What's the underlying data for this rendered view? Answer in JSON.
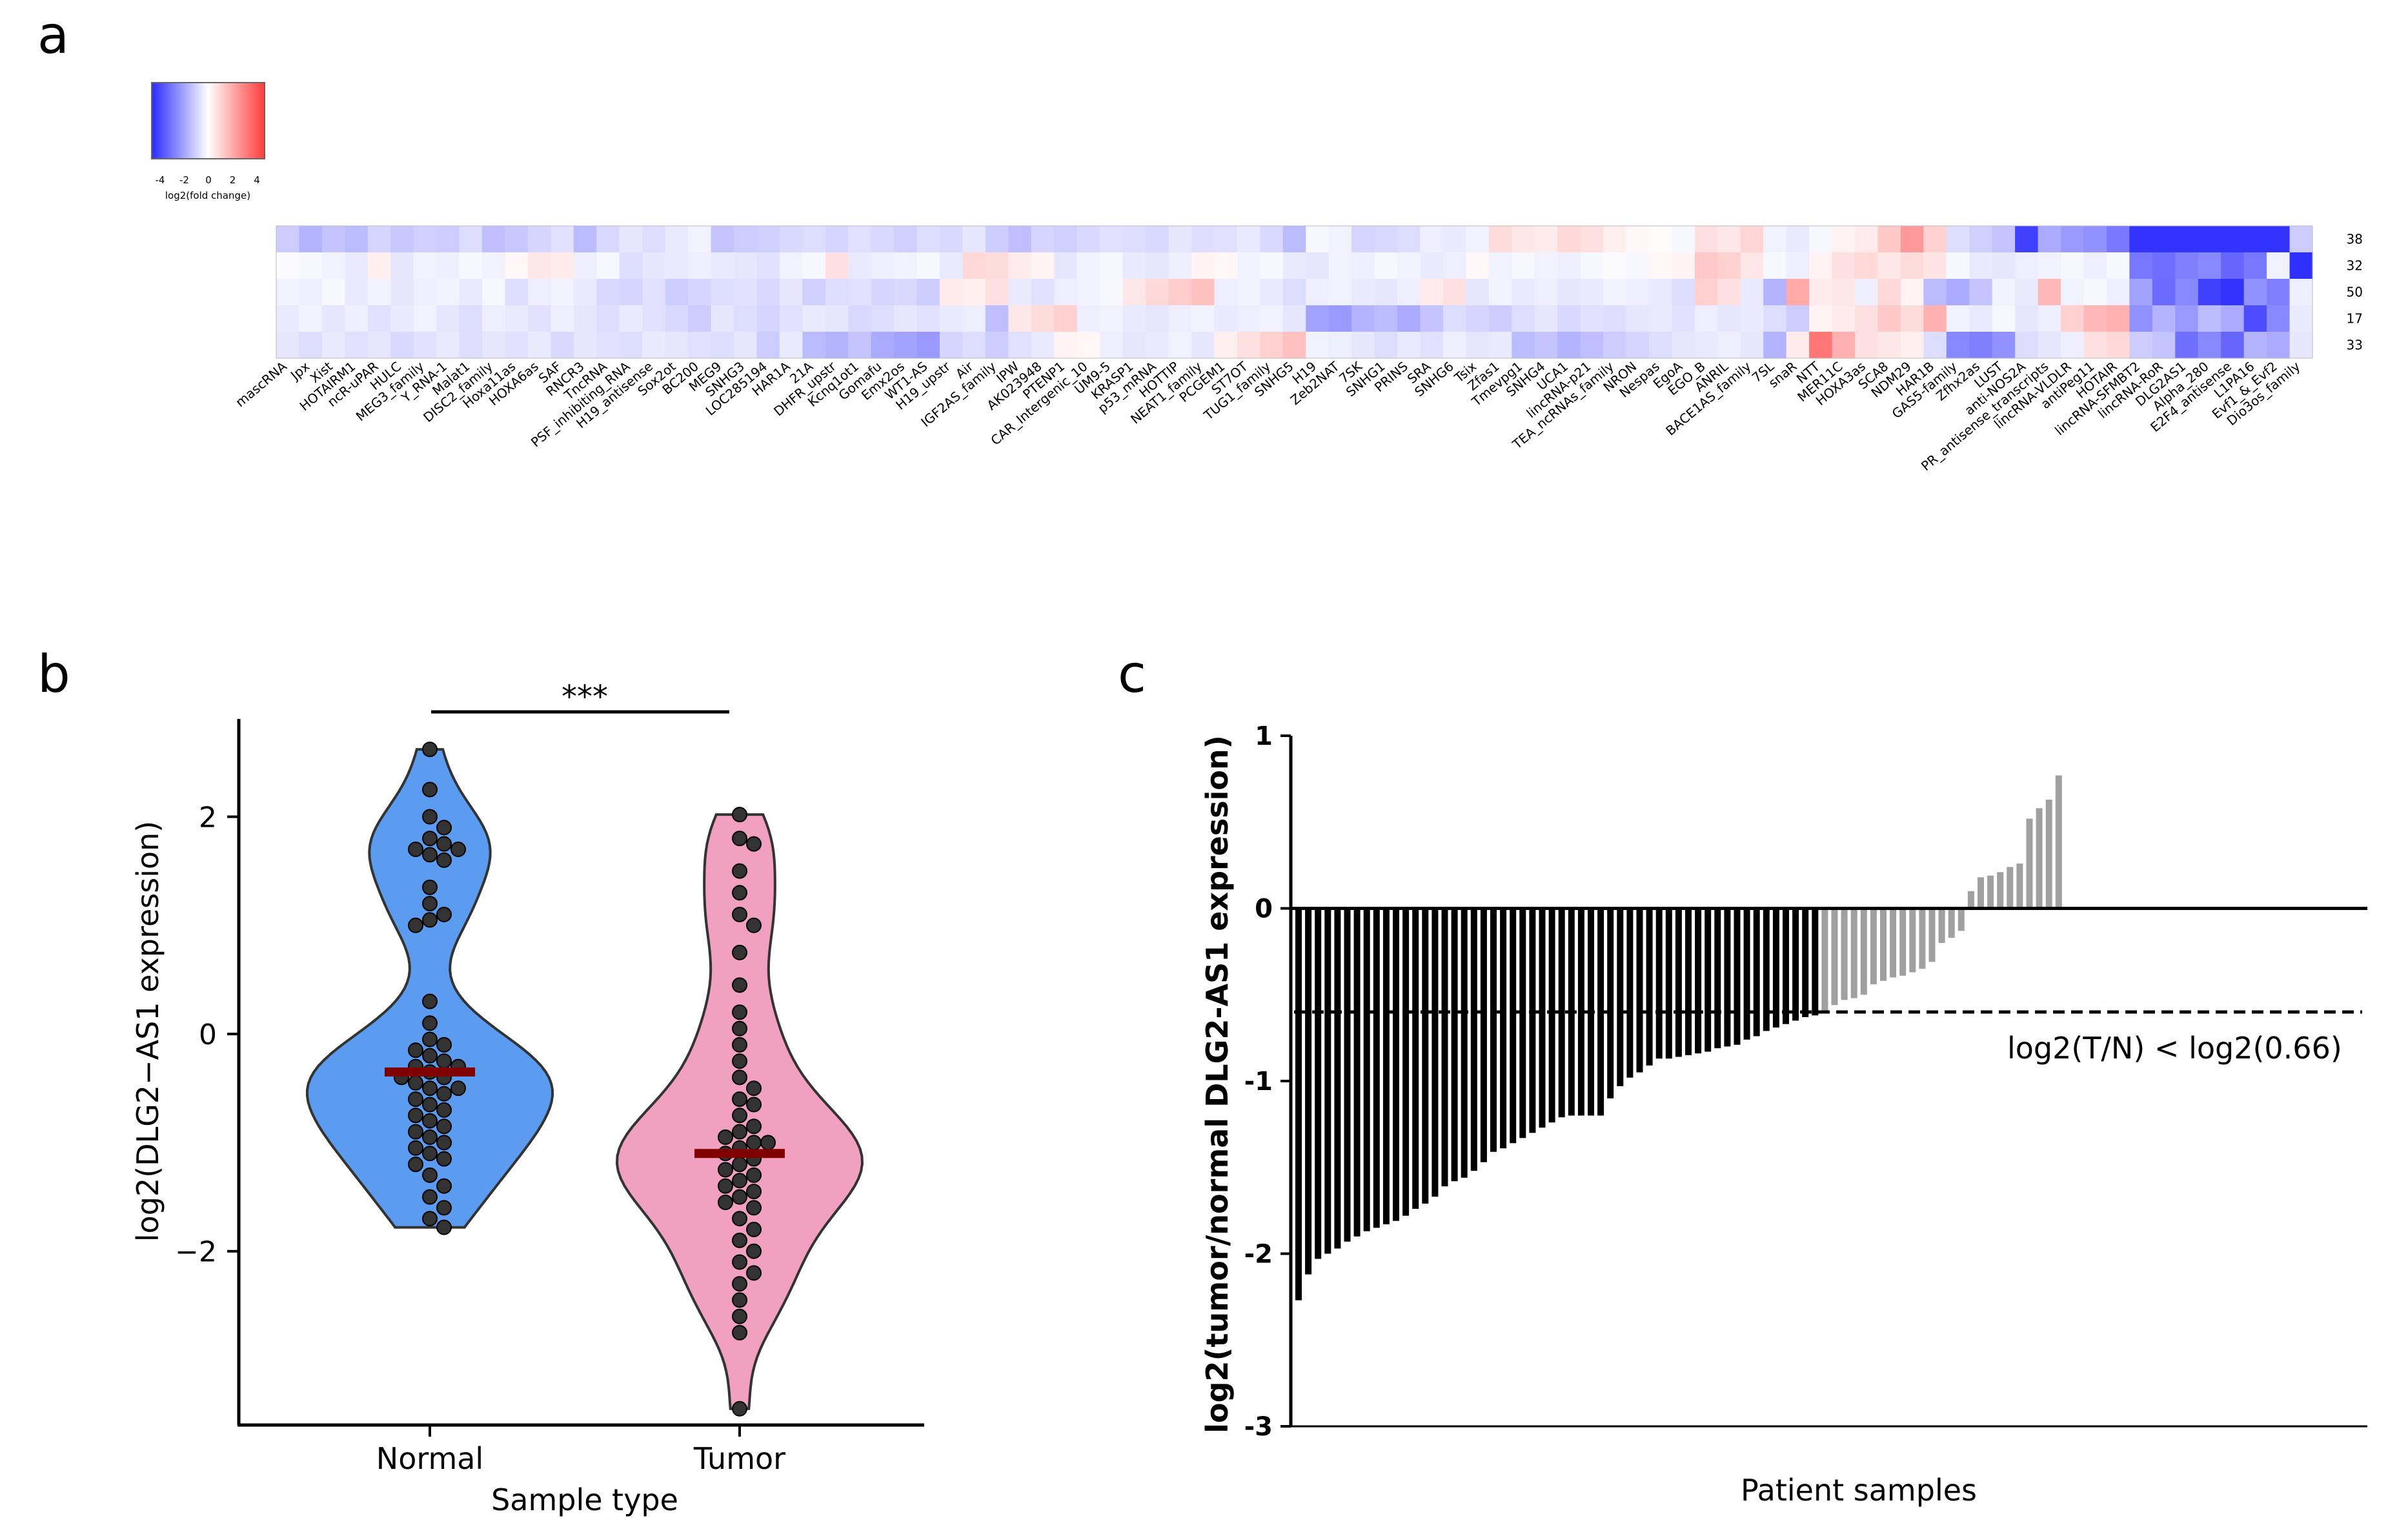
{
  "panels": {
    "a": "a",
    "b": "b",
    "c": "c"
  },
  "colorbar": {
    "ticks": [
      "-4",
      "-2",
      "0",
      "2",
      "4"
    ],
    "label": "log2(fold change)",
    "colors": {
      "low": "#2b2bff",
      "mid": "#ffffff",
      "high": "#ff3b3b"
    }
  },
  "chart_data": [
    {
      "type": "heatmap",
      "panel": "a",
      "row_labels": [
        "38",
        "32",
        "50",
        "17",
        "33"
      ],
      "columns": [
        "mascRNA",
        "Jpx",
        "Xist",
        "HOTAIRM1",
        "ncR-uPAR",
        "HULC",
        "MEG3_family",
        "Y_RNA-1",
        "Malat1",
        "DISC2_family",
        "Hoxa11as",
        "HOXA6as",
        "SAF",
        "RNCR3",
        "TncRNA",
        "PSF_inhibiting_RNA",
        "H19_antisense",
        "Sox2ot",
        "BC200",
        "MEG9",
        "SNHG3",
        "LOC285194",
        "HAR1A",
        "21A",
        "DHFR_upstr",
        "Kcnq1ot1",
        "Gomafu",
        "Emx2os",
        "WT1-AS",
        "H19_upstr",
        "Air",
        "IGF2AS_family",
        "IPW",
        "AK023948",
        "PTENP1",
        "CAR_Intergenic_10",
        "UM9-5",
        "KRASP1",
        "p53_mRNA",
        "HOTTIP",
        "NEAT1_family",
        "PCGEM1",
        "ST7OT",
        "TUG1_family",
        "SNHG5",
        "H19",
        "Zeb2NAT",
        "7SK",
        "SNHG1",
        "PRINS",
        "SRA",
        "SNHG6",
        "Tsix",
        "Zfas1",
        "Tmevpg1",
        "SNHG4",
        "UCA1",
        "lincRNA-p21",
        "TEA_ncRNAs_family",
        "NRON",
        "Nespas",
        "EgoA",
        "EGO_B",
        "ANRIL",
        "BACE1AS_family",
        "7SL",
        "snaR",
        "NTT",
        "MER11C",
        "HOXA3as",
        "SCA8",
        "NDM29",
        "HAR1B",
        "GAS5-family",
        "Zfhx2as",
        "LUST",
        "anti-NOS2A",
        "PR_antisense_transcripts",
        "lincRNA-VLDLR",
        "antiPeg11",
        "HOTAIR",
        "lincRNA-SFMBT2",
        "lincRNA-RoR",
        "DLG2AS1",
        "Alpha_280",
        "E2F4_antisense",
        "L1PA16",
        "Evf1_&_Evf2",
        "Dio3os_family"
      ],
      "values": [
        [
          -1.2,
          -1.8,
          -1.4,
          -1.6,
          -1.0,
          -1.3,
          -1.1,
          -1.2,
          -0.8,
          -1.5,
          -1.3,
          -1.0,
          -0.7,
          -1.6,
          -0.9,
          -0.6,
          -0.8,
          -0.5,
          -0.3,
          -1.4,
          -1.2,
          -1.1,
          -0.9,
          -0.8,
          -1.0,
          -0.7,
          -0.9,
          -1.1,
          -0.8,
          -0.9,
          -0.6,
          -1.2,
          -1.5,
          -1.0,
          -1.1,
          -0.9,
          -0.7,
          -0.8,
          -0.9,
          -0.6,
          -0.8,
          -0.7,
          -0.5,
          -0.9,
          -1.6,
          -0.2,
          -0.3,
          -1.0,
          -0.9,
          -0.8,
          -0.4,
          -0.5,
          -0.3,
          0.9,
          0.6,
          0.5,
          1.0,
          0.8,
          0.4,
          0.2,
          0.1,
          -0.2,
          0.8,
          0.6,
          1.1,
          -0.3,
          -0.5,
          -0.2,
          0.3,
          0.5,
          1.4,
          2.6,
          1.2,
          -0.8,
          -1.1,
          -1.4,
          -4.5,
          -2.0,
          -2.4,
          -2.6,
          -3.2,
          -4.8,
          -4.8,
          -4.8,
          -4.8,
          -4.8,
          -4.8,
          -4.8,
          -1.2
        ],
        [
          -0.1,
          -0.2,
          -0.3,
          -0.5,
          0.4,
          -0.6,
          -0.3,
          -0.4,
          -0.2,
          -0.3,
          0.2,
          0.6,
          0.5,
          -0.4,
          -0.2,
          -0.8,
          -0.6,
          -0.5,
          -0.4,
          -0.5,
          -0.6,
          -0.7,
          -0.3,
          -0.2,
          0.8,
          -0.5,
          -0.4,
          -0.3,
          -0.2,
          -0.5,
          1.0,
          0.9,
          0.5,
          0.3,
          -0.6,
          -0.3,
          -0.2,
          -0.5,
          -0.6,
          -0.4,
          0.3,
          0.2,
          -0.3,
          -0.2,
          -0.5,
          -0.6,
          -0.3,
          -0.4,
          -0.2,
          -0.3,
          -0.5,
          -0.4,
          0.2,
          -0.3,
          -0.2,
          -0.3,
          -0.4,
          -0.2,
          -0.1,
          -0.2,
          0.2,
          0.3,
          1.4,
          1.2,
          0.6,
          -0.2,
          -0.4,
          0.3,
          0.8,
          1.0,
          0.6,
          0.9,
          0.7,
          -0.2,
          -0.5,
          -0.6,
          -0.4,
          -0.3,
          -0.2,
          -0.4,
          -0.2,
          -3.2,
          -3.4,
          -3.0,
          -2.8,
          -3.6,
          -3.2,
          -0.3,
          -4.9
        ],
        [
          -0.3,
          -0.4,
          -0.2,
          -0.5,
          -0.3,
          -0.6,
          -0.4,
          -0.3,
          -0.5,
          -0.2,
          -0.8,
          -0.4,
          -0.3,
          -0.5,
          -0.9,
          -1.0,
          -0.7,
          -1.2,
          -1.0,
          -0.8,
          -0.7,
          -0.9,
          -0.6,
          -1.1,
          -0.8,
          -0.7,
          -1.0,
          -0.9,
          -1.2,
          0.5,
          0.4,
          0.8,
          -0.5,
          -0.7,
          -0.4,
          -0.3,
          -0.2,
          0.6,
          1.0,
          1.3,
          1.6,
          -0.4,
          -0.3,
          -0.5,
          -0.8,
          -0.4,
          -0.3,
          -0.5,
          -0.6,
          -0.4,
          0.5,
          0.8,
          -0.6,
          -0.3,
          -0.5,
          -0.4,
          -0.6,
          -0.5,
          -0.3,
          -0.4,
          -0.5,
          -0.8,
          1.2,
          0.8,
          -0.5,
          -1.8,
          2.2,
          0.5,
          0.6,
          -0.4,
          1.0,
          0.3,
          -1.6,
          -2.0,
          -1.4,
          -0.3,
          -0.5,
          1.8,
          -0.3,
          -0.2,
          -0.4,
          -2.2,
          -3.5,
          -2.8,
          -4.5,
          -4.8,
          -2.6,
          -3.0,
          -0.4
        ],
        [
          -0.5,
          -0.3,
          -0.6,
          -0.4,
          -0.7,
          -0.5,
          -0.3,
          -0.6,
          -0.8,
          -0.4,
          -0.5,
          -0.7,
          -0.4,
          -0.6,
          -0.8,
          -0.5,
          -0.7,
          -0.9,
          -1.2,
          -0.6,
          -0.8,
          -1.0,
          -0.7,
          -0.5,
          -0.6,
          -0.9,
          -0.8,
          -0.6,
          -0.7,
          -0.5,
          -0.4,
          -1.5,
          0.6,
          0.9,
          1.2,
          -0.4,
          -0.3,
          -0.5,
          -0.6,
          -0.4,
          -0.3,
          -0.5,
          -0.4,
          -0.3,
          -0.6,
          -2.2,
          -2.4,
          -1.8,
          -1.6,
          -2.0,
          -1.4,
          -0.8,
          -1.0,
          -1.2,
          -0.8,
          -0.6,
          -0.9,
          -0.7,
          -0.8,
          -0.6,
          -0.5,
          -0.7,
          -0.4,
          -0.6,
          -0.5,
          -0.8,
          -1.2,
          0.3,
          0.5,
          0.8,
          1.4,
          0.9,
          2.0,
          -0.3,
          -0.5,
          -0.2,
          -0.6,
          -0.4,
          1.2,
          1.8,
          2.0,
          -2.6,
          -1.8,
          -2.4,
          -1.6,
          -2.0,
          -4.2,
          -2.8,
          -0.5
        ],
        [
          -0.6,
          -0.8,
          -0.5,
          -0.7,
          -0.6,
          -0.9,
          -0.7,
          -0.5,
          -0.8,
          -0.6,
          -0.7,
          -0.5,
          -0.9,
          -0.6,
          -0.7,
          -0.8,
          -0.5,
          -0.6,
          -0.7,
          -0.8,
          -0.6,
          -1.2,
          -0.5,
          -1.6,
          -1.8,
          -1.4,
          -2.0,
          -2.2,
          -2.4,
          -1.0,
          -0.8,
          -1.2,
          -0.7,
          -0.5,
          0.3,
          0.2,
          -0.4,
          -0.6,
          -0.5,
          -0.3,
          -0.6,
          0.4,
          0.8,
          1.2,
          1.6,
          -0.3,
          -0.4,
          -0.6,
          -0.8,
          -0.5,
          -0.7,
          -0.4,
          -0.6,
          -0.5,
          -1.6,
          -1.4,
          -1.8,
          -1.5,
          -1.2,
          -1.0,
          -0.8,
          -0.6,
          -0.5,
          -0.4,
          -0.6,
          -1.8,
          0.5,
          3.5,
          2.0,
          0.8,
          0.6,
          0.4,
          -0.8,
          -2.8,
          -3.0,
          -2.6,
          -0.8,
          -0.6,
          -0.4,
          0.8,
          1.0,
          -1.2,
          -1.4,
          -3.4,
          -2.8,
          -3.6,
          -1.8,
          -2.0,
          -0.6
        ]
      ]
    },
    {
      "type": "violin",
      "panel": "b",
      "ylabel": "log2(DLG2−AS1 expression)",
      "xlabel": "Sample type",
      "categories": [
        "Normal",
        "Tumor"
      ],
      "yticks": [
        "2",
        "0",
        "−2"
      ],
      "ylim": [
        -3.6,
        2.9
      ],
      "significance": "***",
      "colors": {
        "Normal": "#5b9bf0",
        "Tumor": "#f2a0bf",
        "median": "#800000",
        "dot": "#333333"
      },
      "medians": [
        -0.35,
        -1.1
      ],
      "series": [
        {
          "name": "Normal",
          "points": [
            2.62,
            2.25,
            2.0,
            1.9,
            1.8,
            1.75,
            1.7,
            1.7,
            1.65,
            1.6,
            1.35,
            1.2,
            1.1,
            1.05,
            1.0,
            0.3,
            0.1,
            -0.05,
            -0.1,
            -0.15,
            -0.2,
            -0.25,
            -0.3,
            -0.3,
            -0.35,
            -0.4,
            -0.4,
            -0.45,
            -0.5,
            -0.5,
            -0.55,
            -0.6,
            -0.65,
            -0.7,
            -0.75,
            -0.8,
            -0.85,
            -0.9,
            -0.95,
            -1.0,
            -1.05,
            -1.1,
            -1.15,
            -1.2,
            -1.3,
            -1.4,
            -1.5,
            -1.6,
            -1.7,
            -1.78
          ]
        },
        {
          "name": "Tumor",
          "points": [
            2.02,
            1.8,
            1.75,
            1.5,
            1.3,
            1.1,
            1.0,
            0.75,
            0.45,
            0.2,
            0.05,
            -0.1,
            -0.25,
            -0.4,
            -0.5,
            -0.6,
            -0.65,
            -0.75,
            -0.85,
            -0.9,
            -0.95,
            -1.0,
            -1.0,
            -1.05,
            -1.1,
            -1.15,
            -1.2,
            -1.25,
            -1.3,
            -1.35,
            -1.4,
            -1.45,
            -1.5,
            -1.55,
            -1.6,
            -1.7,
            -1.8,
            -1.9,
            -2.0,
            -2.1,
            -2.2,
            -2.3,
            -2.45,
            -2.6,
            -2.75,
            -3.45
          ]
        }
      ]
    },
    {
      "type": "bar",
      "panel": "c",
      "ylabel": "log2(tumor/normal DLG2-AS1 expression)",
      "xlabel": "Patient samples",
      "yticks": [
        "1",
        "0",
        "-1",
        "-2",
        "-3"
      ],
      "ylim": [
        -3,
        1
      ],
      "threshold": -0.6,
      "threshold_label": "log2(T/N) < log2(0.66)",
      "colors": {
        "below": "#000000",
        "above": "#a0a0a0"
      },
      "values": [
        -2.27,
        -2.12,
        -2.03,
        -2.0,
        -1.97,
        -1.93,
        -1.9,
        -1.87,
        -1.85,
        -1.83,
        -1.81,
        -1.78,
        -1.74,
        -1.71,
        -1.67,
        -1.61,
        -1.58,
        -1.56,
        -1.52,
        -1.47,
        -1.41,
        -1.39,
        -1.36,
        -1.33,
        -1.3,
        -1.27,
        -1.24,
        -1.21,
        -1.2,
        -1.2,
        -1.2,
        -1.2,
        -1.1,
        -1.03,
        -0.98,
        -0.95,
        -0.91,
        -0.87,
        -0.87,
        -0.86,
        -0.85,
        -0.84,
        -0.83,
        -0.81,
        -0.8,
        -0.79,
        -0.76,
        -0.74,
        -0.71,
        -0.69,
        -0.67,
        -0.65,
        -0.63,
        -0.62,
        -0.6,
        -0.56,
        -0.53,
        -0.52,
        -0.5,
        -0.44,
        -0.42,
        -0.4,
        -0.39,
        -0.37,
        -0.35,
        -0.31,
        -0.2,
        -0.17,
        -0.13,
        0.1,
        0.18,
        0.19,
        0.21,
        0.24,
        0.26,
        0.52,
        0.58,
        0.63,
        0.77
      ]
    }
  ]
}
